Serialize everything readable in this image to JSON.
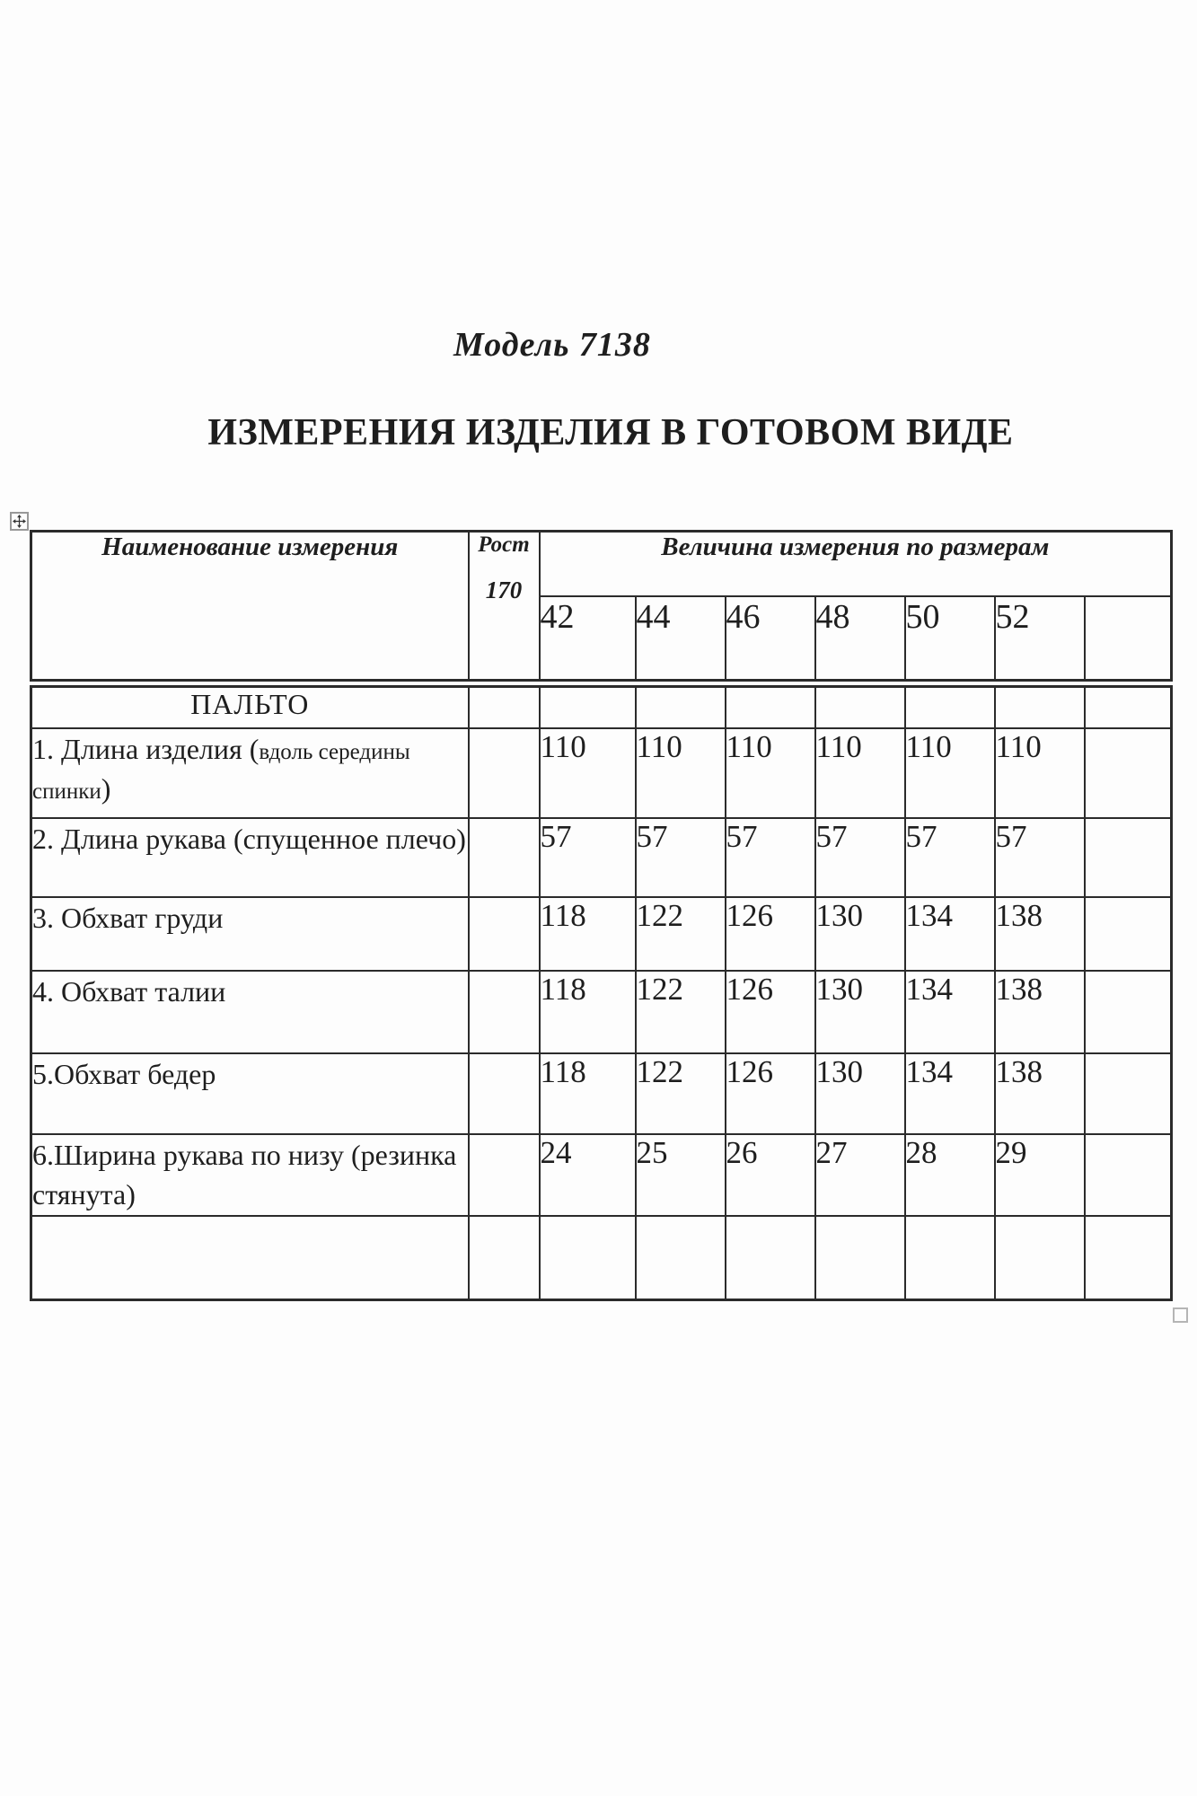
{
  "document": {
    "model_title": "Модель 7138",
    "heading": "ИЗМЕРЕНИЯ ИЗДЕЛИЯ В ГОТОВОМ ВИДЕ"
  },
  "table": {
    "header": {
      "name": "Наименование измерения",
      "height_label": "Рост",
      "height_value": "170",
      "sizes_group": "Величина измерения по размерам",
      "sizes": [
        "42",
        "44",
        "46",
        "48",
        "50",
        "52"
      ]
    },
    "section_title": "ПАЛЬТО",
    "rows": [
      {
        "label_parts": [
          {
            "t": "1. Длина изделия ("
          },
          {
            "t": "вдоль середины спинки",
            "small": true
          },
          {
            "t": ")"
          }
        ],
        "values": [
          "110",
          "110",
          "110",
          "110",
          "110",
          "110"
        ]
      },
      {
        "label_parts": [
          {
            "t": "2. Длина рукава (спущенное плечо)"
          }
        ],
        "values": [
          "57",
          "57",
          "57",
          "57",
          "57",
          "57"
        ]
      },
      {
        "label_parts": [
          {
            "t": "3. Обхват груди"
          }
        ],
        "values": [
          "118",
          "122",
          "126",
          "130",
          "134",
          "138"
        ]
      },
      {
        "label_parts": [
          {
            "t": "4. Обхват талии"
          }
        ],
        "values": [
          "118",
          "122",
          "126",
          "130",
          "134",
          "138"
        ]
      },
      {
        "label_parts": [
          {
            "t": "5.Обхват бедер"
          }
        ],
        "values": [
          "118",
          "122",
          "126",
          "130",
          "134",
          "138"
        ]
      },
      {
        "label_parts": [
          {
            "t": "6.Ширина рукава по низу (резинка стянута)"
          }
        ],
        "values": [
          "24",
          "25",
          "26",
          "27",
          "28",
          "29"
        ]
      },
      {
        "label_parts": [],
        "values": [
          "",
          "",
          "",
          "",
          "",
          ""
        ]
      }
    ]
  },
  "icons": {
    "move_handle": "four-way-arrow-icon",
    "resize_handle": "resize-square-icon"
  },
  "colors": {
    "text": "#1e1e1e",
    "table_border": "#2b2b2b",
    "background": "#fdfdfd"
  }
}
